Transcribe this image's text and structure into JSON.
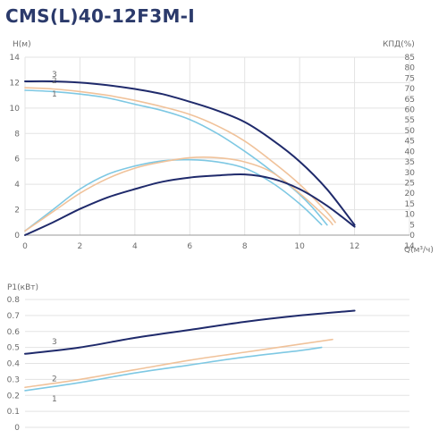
{
  "title": "CMS(L)40-12F3M-I",
  "colors": {
    "curve_1": "#7ec8e3",
    "curve_2": "#f0c29a",
    "curve_3": "#1f2a6b",
    "grid": "#e3e3e3",
    "axis": "#999999"
  },
  "chart_data": [
    {
      "type": "line",
      "xlabel": "Q(м³/ч)",
      "ylabel": "H(м)",
      "y2label": "КПД(%)",
      "xlim": [
        0,
        14
      ],
      "ylim": [
        0,
        14
      ],
      "y2lim": [
        0,
        85
      ],
      "x_ticks": [
        0,
        2,
        4,
        6,
        8,
        10,
        12,
        14
      ],
      "y_ticks": [
        0,
        2,
        4,
        6,
        8,
        10,
        12,
        14
      ],
      "y2_ticks": [
        0,
        5,
        10,
        15,
        20,
        25,
        30,
        35,
        40,
        45,
        50,
        55,
        60,
        65,
        70,
        75,
        80,
        85
      ],
      "grid": true,
      "series": [
        {
          "name": "1",
          "kind": "head",
          "axis": "y",
          "x": [
            0,
            1,
            2,
            3,
            4,
            5,
            6,
            7,
            8,
            9,
            10,
            10.5,
            11
          ],
          "y": [
            11.4,
            11.3,
            11.1,
            10.8,
            10.3,
            9.8,
            9.1,
            8.0,
            6.6,
            5.0,
            3.2,
            2.1,
            0.8
          ]
        },
        {
          "name": "2",
          "kind": "head",
          "axis": "y",
          "x": [
            0,
            1,
            2,
            3,
            4,
            5,
            6,
            7,
            8,
            9,
            10,
            11,
            11.3
          ],
          "y": [
            11.6,
            11.5,
            11.3,
            11.0,
            10.6,
            10.1,
            9.5,
            8.6,
            7.4,
            5.8,
            4.0,
            1.8,
            1.0
          ]
        },
        {
          "name": "3",
          "kind": "head",
          "axis": "y",
          "x": [
            0,
            1,
            2,
            3,
            4,
            5,
            6,
            7,
            8,
            9,
            10,
            11,
            12
          ],
          "y": [
            12.1,
            12.1,
            12.0,
            11.8,
            11.5,
            11.1,
            10.5,
            9.8,
            8.9,
            7.5,
            5.8,
            3.6,
            0.8
          ]
        },
        {
          "name": "1",
          "kind": "efficiency",
          "axis": "y2",
          "x": [
            0,
            1,
            2,
            3,
            4,
            5,
            6,
            7,
            8,
            9,
            10,
            10.8
          ],
          "y": [
            2,
            12,
            22,
            29,
            33,
            35.5,
            36,
            35,
            32,
            25,
            15,
            5
          ]
        },
        {
          "name": "2",
          "kind": "efficiency",
          "axis": "y2",
          "x": [
            0,
            1,
            2,
            3,
            4,
            5,
            6,
            7,
            8,
            9,
            10,
            11,
            11.2
          ],
          "y": [
            2,
            11,
            20,
            27,
            32,
            35,
            37,
            37,
            35,
            30,
            20,
            8,
            5
          ]
        },
        {
          "name": "3",
          "kind": "efficiency",
          "axis": "y2",
          "x": [
            0,
            1,
            2,
            3,
            4,
            5,
            6,
            7,
            8,
            9,
            10,
            11,
            12
          ],
          "y": [
            0,
            6,
            12.5,
            18,
            22,
            25.5,
            27.5,
            28.5,
            29,
            27,
            22,
            14,
            4
          ]
        }
      ],
      "curve_labels": [
        "1",
        "2",
        "3"
      ]
    },
    {
      "type": "line",
      "ylabel": "P1(кВт)",
      "ylim": [
        0,
        0.8
      ],
      "y_ticks": [
        "0",
        "0.1",
        "0.2",
        "0.3",
        "0.4",
        "0.5",
        "0.6",
        "0.7",
        "0.8"
      ],
      "xlim": [
        0,
        14
      ],
      "grid": true,
      "series": [
        {
          "name": "1",
          "x": [
            0,
            2,
            4,
            6,
            8,
            10,
            10.8
          ],
          "y": [
            0.23,
            0.28,
            0.34,
            0.39,
            0.44,
            0.48,
            0.5
          ]
        },
        {
          "name": "2",
          "x": [
            0,
            2,
            4,
            6,
            8,
            10,
            11.2
          ],
          "y": [
            0.25,
            0.3,
            0.36,
            0.42,
            0.47,
            0.52,
            0.55
          ]
        },
        {
          "name": "3",
          "x": [
            0,
            2,
            4,
            6,
            8,
            10,
            12
          ],
          "y": [
            0.46,
            0.5,
            0.56,
            0.61,
            0.66,
            0.7,
            0.73
          ]
        }
      ],
      "curve_labels": [
        "1",
        "2",
        "3"
      ]
    }
  ]
}
